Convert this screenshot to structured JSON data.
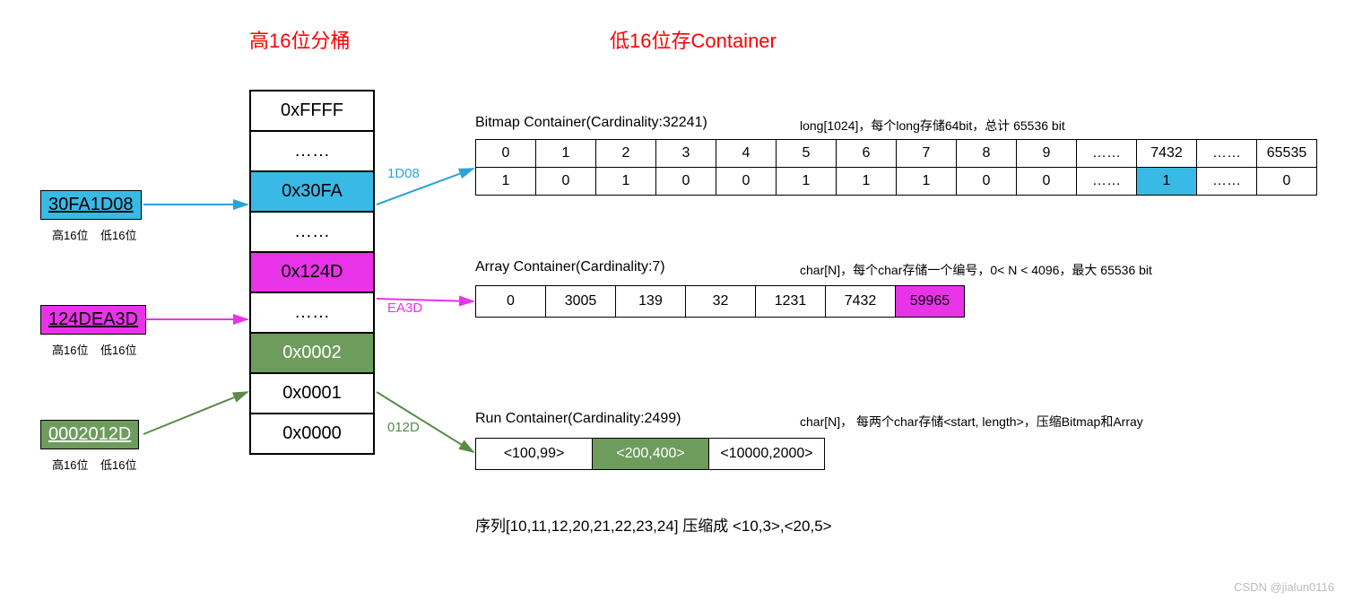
{
  "colors": {
    "blue": "#39b9e6",
    "magenta": "#e833e8",
    "green": "#6d9c5c",
    "blueText": "#2aa3d8",
    "magentaText": "#e833e8",
    "greenText": "#5a8a49",
    "red": "#ff0000"
  },
  "titles": {
    "left": "高16位分桶",
    "right": "低16位存Container"
  },
  "inputs": {
    "b1": {
      "text": "30FA1D08",
      "sub_left": "高16位",
      "sub_right": "低16位"
    },
    "b2": {
      "text": "124DEA3D",
      "sub_left": "高16位",
      "sub_right": "低16位"
    },
    "b3": {
      "text": "0002012D",
      "sub_left": "高16位",
      "sub_right": "低16位"
    }
  },
  "bucket": {
    "cells": [
      "0xFFFF",
      "……",
      "0x30FA",
      "……",
      "0x124D",
      "……",
      "0x0002",
      "0x0001",
      "0x0000"
    ],
    "hl": {
      "2": "blue",
      "4": "magenta",
      "6": "green"
    }
  },
  "edges": {
    "e1": "1D08",
    "e2": "EA3D",
    "e3": "012D"
  },
  "bitmap": {
    "title": "Bitmap Container(Cardinality:32241)",
    "note": "long[1024]，每个long存储64bit，总计 65536 bit",
    "header": [
      "0",
      "1",
      "2",
      "3",
      "4",
      "5",
      "6",
      "7",
      "8",
      "9",
      "……",
      "7432",
      "……",
      "65535"
    ],
    "values": [
      "1",
      "0",
      "1",
      "0",
      "0",
      "1",
      "1",
      "1",
      "0",
      "0",
      "……",
      "1",
      "……",
      "0"
    ],
    "hl_value_index": 11
  },
  "arrayc": {
    "title": "Array Container(Cardinality:7)",
    "note": "char[N]，每个char存储一个编号，0< N < 4096，最大 65536 bit",
    "cells": [
      "0",
      "3005",
      "139",
      "32",
      "1231",
      "7432",
      "59965"
    ],
    "hl_index": 6
  },
  "runc": {
    "title": "Run Container(Cardinality:2499)",
    "note": "char[N]， 每两个char存储<start, length>，压缩Bitmap和Array",
    "cells": [
      "<100,99>",
      "<200,400>",
      "<10000,2000>"
    ],
    "hl_index": 1,
    "example": "序列[10,11,12,20,21,22,23,24]  压缩成  <10,3>,<20,5>"
  },
  "watermark": "CSDN @jialun0116"
}
